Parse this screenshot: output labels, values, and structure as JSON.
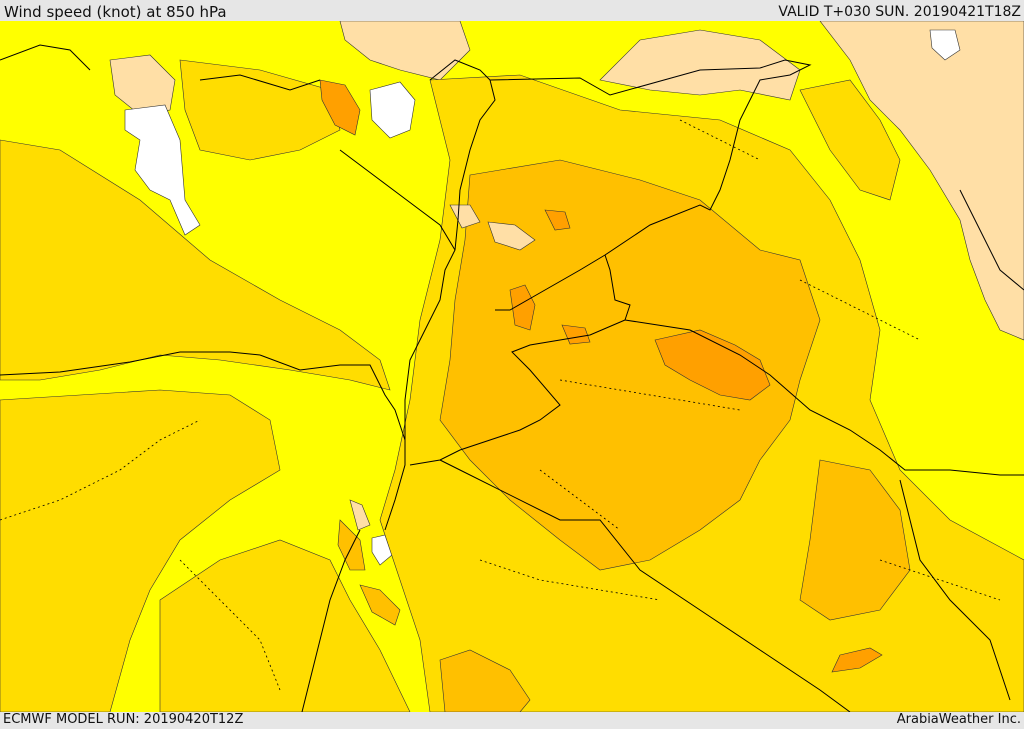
{
  "header": {
    "title": "Wind speed (knot) at 850 hPa",
    "valid": "VALID T+030 SUN. 20190421T18Z"
  },
  "footer": {
    "model_run": "ECMWF MODEL RUN: 20190420T12Z",
    "credit": "ArabiaWeather Inc."
  },
  "colors": {
    "band_lowest": "#ffffff",
    "band_low": "#ffdfa6",
    "band_1": "#ffff00",
    "band_2": "#ffdd00",
    "band_3": "#ffc000",
    "band_4": "#ffa000",
    "band_5": "#ff8c00",
    "border": "#000000"
  },
  "map": {
    "variable": "Wind speed",
    "units": "knot",
    "level": "850 hPa"
  }
}
